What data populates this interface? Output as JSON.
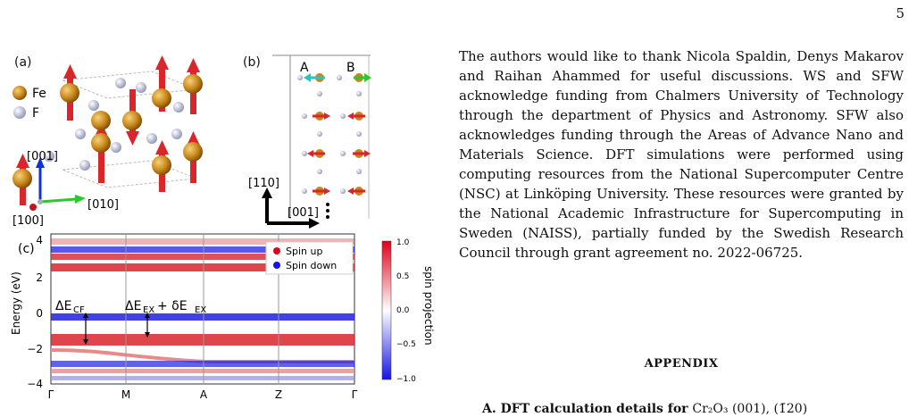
{
  "page_number": "5",
  "figure": {
    "panel_a": {
      "label": "(a)",
      "legend": [
        {
          "symbol": "Fe",
          "color": "#c8861a"
        },
        {
          "symbol": "F",
          "color": "#b8bbd6"
        }
      ],
      "axes": {
        "z": "[001]",
        "y": "[010]",
        "x": "[100]"
      }
    },
    "panel_b": {
      "label": "(b)",
      "sites": [
        "A",
        "B"
      ],
      "axes": {
        "vertical": "[110]",
        "horizontal": "[001]"
      }
    },
    "panel_c": {
      "label": "(c)",
      "ylabel": "Energy (eV)",
      "yticks": [
        "4",
        "2",
        "0",
        "−2",
        "−4"
      ],
      "kpoints": [
        "Γ",
        "M",
        "A",
        "Z",
        "Γ"
      ],
      "legend": [
        "Spin up",
        "Spin down"
      ],
      "colorbar_label": "spin projection",
      "colorbar_ticks": [
        "1.0",
        "0.5",
        "0.0",
        "−0.5",
        "−1.0"
      ],
      "annotations": {
        "cf": "ΔE",
        "cf_sub": "CF",
        "ex": "ΔE",
        "ex_sub": "EX",
        "plus": "+ δE",
        "ex2_sub": "EX"
      }
    }
  },
  "chart_data": {
    "type": "line",
    "ylabel": "Energy (eV)",
    "ylim": [
      -4,
      4
    ],
    "x": [
      "Γ",
      "M",
      "A",
      "Z",
      "Γ"
    ],
    "series": [
      {
        "name": "Spin up",
        "values": [
          -1.5,
          -1.5,
          -1.5,
          -1.5,
          -1.5
        ]
      },
      {
        "name": "Spin down",
        "values": [
          -0.3,
          -0.3,
          -0.3,
          -0.3,
          -0.3
        ]
      }
    ]
  },
  "text": {
    "acknowledgment": "The authors would like to thank Nicola Spaldin, Denys Makarov and Raihan Ahammed for useful discussions. WS and SFW acknowledge funding from Chalmers University of Technology through the department of Physics and Astronomy. SFW also acknowledges funding through the Areas of Advance Nano and Materials Science. DFT simulations were performed using computing resources from the National Supercomputer Centre (NSC) at Linköping University. These resources were granted by the National Academic Infrastructure for Supercomputing in Sweden (NAISS), partially funded by the Swedish Research Council through grant agreement no. 2022-06725.",
    "appendix_heading": "APPENDIX",
    "subsection_bold": "A.    DFT calculation details for",
    "subsection_normal": "Cr₂O₃ (001), (1̄20)"
  }
}
